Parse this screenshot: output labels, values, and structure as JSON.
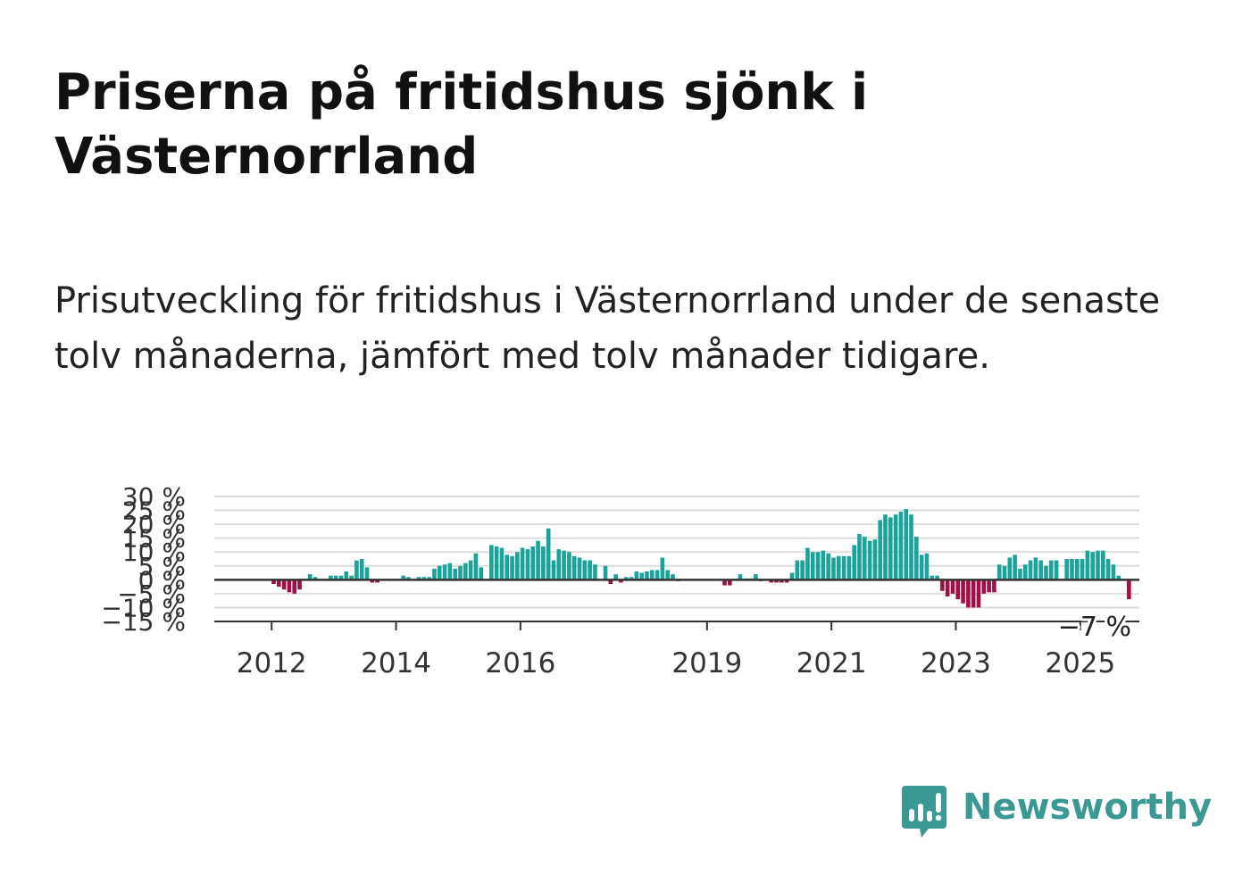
{
  "title": "Priserna på fritidshus sjönk i Västernorrland",
  "subtitle": "Prisutveckling för fritidshus i Västernorrland under de senaste tolv månaderna, jämfört med tolv månader tidigare.",
  "logo": {
    "text": "Newsworthy",
    "icon": "newsworthy-logo-icon",
    "color": "#3a9a93"
  },
  "colors": {
    "positive": "#1aa39a",
    "negative": "#a01048",
    "grid": "#dddddd",
    "zero_line": "#333333"
  },
  "chart_data": {
    "type": "bar",
    "x_start": "2011-09",
    "interval": "month",
    "ylim": [
      -15,
      30
    ],
    "y_ticks": [
      {
        "value": 30,
        "label": "30 %"
      },
      {
        "value": 25,
        "label": "25 %"
      },
      {
        "value": 20,
        "label": "20 %"
      },
      {
        "value": 15,
        "label": "15 %"
      },
      {
        "value": 10,
        "label": "10 %"
      },
      {
        "value": 5,
        "label": "5 %"
      },
      {
        "value": 0,
        "label": "0 %"
      },
      {
        "value": -5,
        "label": "−5 %"
      },
      {
        "value": -10,
        "label": "−10 %"
      },
      {
        "value": -15,
        "label": "−15 %"
      }
    ],
    "x_ticks": [
      "2012",
      "2014",
      "2016",
      "2019",
      "2021",
      "2023",
      "2025"
    ],
    "grid": true,
    "annotation": {
      "label": "−7 %",
      "value": -7
    },
    "values": [
      0,
      0,
      0,
      0,
      -1.5,
      -2.5,
      -3.5,
      -4.5,
      -5,
      -3.5,
      0,
      2,
      1,
      0,
      0,
      1.5,
      1.5,
      1.5,
      3,
      1.5,
      7,
      7.5,
      4.5,
      -1,
      -1,
      0,
      0,
      0,
      0,
      1.5,
      1,
      0,
      1,
      1,
      1,
      4,
      5,
      5.5,
      6,
      4,
      5,
      6,
      7,
      9.5,
      4.5,
      0,
      12.5,
      12,
      11.5,
      9,
      8.5,
      10,
      11.5,
      11,
      12,
      14,
      12,
      18.5,
      7,
      11,
      10.5,
      10,
      8.5,
      8,
      7,
      7,
      5.5,
      0,
      5,
      -1.5,
      2,
      -1,
      1,
      1,
      3,
      2.5,
      3,
      3.5,
      3.5,
      8,
      3.5,
      2,
      -0.5,
      0,
      0,
      0,
      0,
      0,
      0,
      0,
      0,
      -2,
      -2,
      0,
      2,
      0.5,
      0.5,
      2,
      -0.5,
      0,
      -1,
      -1,
      -1,
      -1,
      2.5,
      7,
      7,
      11.5,
      10,
      10,
      10.5,
      9.5,
      8,
      8.5,
      8.5,
      8.5,
      12.5,
      16.5,
      15.5,
      14,
      14.5,
      21.5,
      23.5,
      22.5,
      23.5,
      24.5,
      25.5,
      23.5,
      15.5,
      9,
      9.5,
      1.5,
      1.5,
      -4,
      -6,
      -5,
      -7,
      -8.5,
      -10,
      -10,
      -10,
      -5,
      -4.5,
      -4.5,
      5.5,
      5,
      8,
      9,
      4,
      5.5,
      7,
      8,
      7,
      5,
      7,
      7,
      0,
      7.5,
      7.5,
      7.5,
      7.5,
      10.5,
      10,
      10.5,
      10.5,
      7.5,
      5.5,
      1.5,
      0,
      -7
    ]
  }
}
